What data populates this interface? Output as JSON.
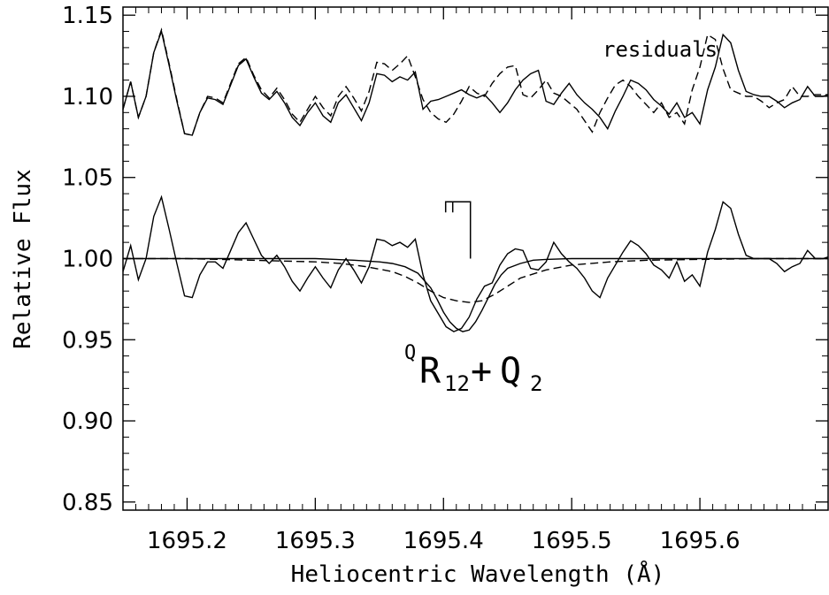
{
  "chart_data": {
    "type": "line",
    "xlabel": "Heliocentric Wavelength (Å)",
    "ylabel": "Relative Flux",
    "xlim": [
      1695.15,
      1695.7
    ],
    "ylim": [
      0.845,
      1.155
    ],
    "x_ticks": [
      1695.2,
      1695.3,
      1695.4,
      1695.5,
      1695.6
    ],
    "x_tick_labels": [
      "1695.2",
      "1695.3",
      "1695.4",
      "1695.5",
      "1695.6"
    ],
    "y_ticks": [
      0.85,
      0.9,
      0.95,
      1.0,
      1.05,
      1.1,
      1.15
    ],
    "y_tick_labels": [
      "0.85",
      "0.90",
      "0.95",
      "1.00",
      "1.05",
      "1.10",
      "1.15"
    ],
    "grid": false,
    "annotations": {
      "residuals_label": "residuals",
      "line_id": {
        "superscript": "Q",
        "base1": "R",
        "subscript1": "12",
        "plus": "+",
        "base2": "Q",
        "subscript2": "2"
      },
      "line_marker_wavelength": 1695.421
    },
    "series": [
      {
        "style": "solid-thin",
        "x": [
          1695.15,
          1695.156,
          1695.162,
          1695.168,
          1695.174,
          1695.18,
          1695.186,
          1695.192,
          1695.198,
          1695.204,
          1695.21,
          1695.216,
          1695.222,
          1695.228,
          1695.234,
          1695.24,
          1695.246,
          1695.252,
          1695.258,
          1695.264,
          1695.27,
          1695.276,
          1695.282,
          1695.288,
          1695.294,
          1695.3,
          1695.306,
          1695.312,
          1695.318,
          1695.324,
          1695.33,
          1695.336,
          1695.342,
          1695.348,
          1695.354,
          1695.36,
          1695.366,
          1695.372,
          1695.378,
          1695.384,
          1695.39,
          1695.396,
          1695.402,
          1695.408,
          1695.414,
          1695.42,
          1695.426,
          1695.432,
          1695.438,
          1695.444,
          1695.45,
          1695.456,
          1695.462,
          1695.468,
          1695.474,
          1695.48,
          1695.486,
          1695.492,
          1695.498,
          1695.504,
          1695.51,
          1695.516,
          1695.522,
          1695.528,
          1695.534,
          1695.54,
          1695.546,
          1695.552,
          1695.558,
          1695.564,
          1695.57,
          1695.576,
          1695.582,
          1695.588,
          1695.594,
          1695.6,
          1695.606,
          1695.612,
          1695.618,
          1695.624,
          1695.63,
          1695.636,
          1695.642,
          1695.648,
          1695.654,
          1695.66,
          1695.666,
          1695.672,
          1695.678,
          1695.684,
          1695.69,
          1695.696,
          1695.7
        ],
        "y": [
          0.992,
          1.008,
          0.987,
          1.0,
          1.026,
          1.038,
          1.018,
          0.997,
          0.977,
          0.976,
          0.99,
          0.998,
          0.998,
          0.994,
          1.005,
          1.016,
          1.022,
          1.012,
          1.002,
          0.997,
          1.002,
          0.995,
          0.986,
          0.98,
          0.988,
          0.995,
          0.988,
          0.982,
          0.993,
          1.0,
          0.993,
          0.985,
          0.995,
          1.012,
          1.011,
          1.008,
          1.01,
          1.007,
          1.012,
          0.99,
          0.974,
          0.966,
          0.958,
          0.955,
          0.957,
          0.964,
          0.975,
          0.983,
          0.985,
          0.996,
          1.003,
          1.006,
          1.005,
          0.994,
          0.993,
          0.998,
          1.01,
          1.003,
          0.998,
          0.994,
          0.988,
          0.98,
          0.976,
          0.988,
          0.996,
          1.004,
          1.011,
          1.008,
          1.003,
          0.996,
          0.993,
          0.988,
          0.998,
          0.986,
          0.99,
          0.983,
          1.004,
          1.018,
          1.035,
          1.031,
          1.015,
          1.002,
          1.0,
          1.0,
          1.0,
          0.997,
          0.992,
          0.995,
          0.997,
          1.005,
          1.0,
          1.0,
          1.001
        ]
      },
      {
        "style": "solid-smooth-model",
        "x": [
          1695.15,
          1695.2,
          1695.25,
          1695.3,
          1695.33,
          1695.35,
          1695.36,
          1695.37,
          1695.38,
          1695.39,
          1695.395,
          1695.4,
          1695.405,
          1695.41,
          1695.415,
          1695.42,
          1695.425,
          1695.43,
          1695.435,
          1695.44,
          1695.445,
          1695.45,
          1695.46,
          1695.47,
          1695.48,
          1695.5,
          1695.55,
          1695.6,
          1695.65,
          1695.7
        ],
        "y": [
          1.0,
          1.0,
          1.0,
          1.0,
          0.999,
          0.998,
          0.997,
          0.995,
          0.991,
          0.982,
          0.975,
          0.967,
          0.961,
          0.957,
          0.955,
          0.956,
          0.961,
          0.968,
          0.976,
          0.984,
          0.99,
          0.994,
          0.997,
          0.999,
          0.9995,
          1.0,
          1.0,
          1.0,
          1.0,
          1.0
        ]
      },
      {
        "style": "dashed-model",
        "x": [
          1695.15,
          1695.2,
          1695.25,
          1695.3,
          1695.32,
          1695.34,
          1695.36,
          1695.37,
          1695.38,
          1695.39,
          1695.4,
          1695.41,
          1695.42,
          1695.43,
          1695.44,
          1695.45,
          1695.46,
          1695.48,
          1695.5,
          1695.53,
          1695.56,
          1695.6,
          1695.65,
          1695.7
        ],
        "y": [
          1.0,
          1.0,
          0.999,
          0.998,
          0.997,
          0.995,
          0.992,
          0.989,
          0.985,
          0.98,
          0.976,
          0.974,
          0.973,
          0.974,
          0.978,
          0.983,
          0.988,
          0.993,
          0.996,
          0.998,
          0.999,
          0.9995,
          1.0,
          1.0
        ]
      },
      {
        "style": "solid-thin",
        "x": [
          1695.15,
          1695.156,
          1695.162,
          1695.168,
          1695.174,
          1695.18,
          1695.186,
          1695.192,
          1695.198,
          1695.204,
          1695.21,
          1695.216,
          1695.222,
          1695.228,
          1695.234,
          1695.24,
          1695.246,
          1695.252,
          1695.258,
          1695.264,
          1695.27,
          1695.276,
          1695.282,
          1695.288,
          1695.294,
          1695.3,
          1695.306,
          1695.312,
          1695.318,
          1695.324,
          1695.33,
          1695.336,
          1695.342,
          1695.348,
          1695.354,
          1695.36,
          1695.366,
          1695.372,
          1695.378,
          1695.384,
          1695.39,
          1695.396,
          1695.402,
          1695.408,
          1695.414,
          1695.42,
          1695.426,
          1695.432,
          1695.438,
          1695.444,
          1695.45,
          1695.456,
          1695.462,
          1695.468,
          1695.474,
          1695.48,
          1695.486,
          1695.492,
          1695.498,
          1695.504,
          1695.51,
          1695.516,
          1695.522,
          1695.528,
          1695.534,
          1695.54,
          1695.546,
          1695.552,
          1695.558,
          1695.564,
          1695.57,
          1695.576,
          1695.582,
          1695.588,
          1695.594,
          1695.6,
          1695.606,
          1695.612,
          1695.618,
          1695.624,
          1695.63,
          1695.636,
          1695.642,
          1695.648,
          1695.654,
          1695.66,
          1695.666,
          1695.672,
          1695.678,
          1695.684,
          1695.69,
          1695.696,
          1695.7
        ],
        "y": [
          1.092,
          1.109,
          1.087,
          1.1,
          1.127,
          1.14,
          1.119,
          1.097,
          1.077,
          1.076,
          1.09,
          1.099,
          1.098,
          1.095,
          1.107,
          1.119,
          1.123,
          1.112,
          1.102,
          1.098,
          1.103,
          1.096,
          1.087,
          1.082,
          1.09,
          1.096,
          1.088,
          1.084,
          1.096,
          1.101,
          1.093,
          1.085,
          1.096,
          1.114,
          1.113,
          1.109,
          1.112,
          1.11,
          1.115,
          1.092,
          1.097,
          1.098,
          1.1,
          1.102,
          1.104,
          1.101,
          1.099,
          1.101,
          1.096,
          1.09,
          1.096,
          1.104,
          1.11,
          1.114,
          1.116,
          1.097,
          1.095,
          1.102,
          1.108,
          1.101,
          1.096,
          1.092,
          1.087,
          1.08,
          1.091,
          1.1,
          1.11,
          1.108,
          1.104,
          1.098,
          1.094,
          1.089,
          1.096,
          1.087,
          1.09,
          1.083,
          1.104,
          1.118,
          1.138,
          1.133,
          1.116,
          1.103,
          1.101,
          1.1,
          1.1,
          1.097,
          1.093,
          1.096,
          1.098,
          1.106,
          1.1,
          1.1,
          1.101
        ]
      },
      {
        "style": "dashed",
        "x": [
          1695.15,
          1695.156,
          1695.162,
          1695.168,
          1695.174,
          1695.18,
          1695.186,
          1695.192,
          1695.198,
          1695.204,
          1695.21,
          1695.216,
          1695.222,
          1695.228,
          1695.234,
          1695.24,
          1695.246,
          1695.252,
          1695.258,
          1695.264,
          1695.27,
          1695.276,
          1695.282,
          1695.288,
          1695.294,
          1695.3,
          1695.306,
          1695.312,
          1695.318,
          1695.324,
          1695.33,
          1695.336,
          1695.342,
          1695.348,
          1695.354,
          1695.36,
          1695.366,
          1695.372,
          1695.378,
          1695.384,
          1695.39,
          1695.396,
          1695.402,
          1695.408,
          1695.414,
          1695.42,
          1695.426,
          1695.432,
          1695.438,
          1695.444,
          1695.45,
          1695.456,
          1695.462,
          1695.468,
          1695.474,
          1695.48,
          1695.486,
          1695.492,
          1695.498,
          1695.504,
          1695.51,
          1695.516,
          1695.522,
          1695.528,
          1695.534,
          1695.54,
          1695.546,
          1695.552,
          1695.558,
          1695.564,
          1695.57,
          1695.576,
          1695.582,
          1695.588,
          1695.594,
          1695.6,
          1695.606,
          1695.612,
          1695.618,
          1695.624,
          1695.63,
          1695.636,
          1695.642,
          1695.648,
          1695.654,
          1695.66,
          1695.666,
          1695.672,
          1695.678,
          1695.684,
          1695.69,
          1695.696,
          1695.7
        ],
        "y": [
          1.092,
          1.109,
          1.087,
          1.1,
          1.127,
          1.141,
          1.12,
          1.098,
          1.077,
          1.076,
          1.09,
          1.1,
          1.099,
          1.096,
          1.108,
          1.12,
          1.124,
          1.113,
          1.104,
          1.099,
          1.105,
          1.098,
          1.089,
          1.084,
          1.092,
          1.1,
          1.093,
          1.088,
          1.1,
          1.106,
          1.099,
          1.091,
          1.103,
          1.121,
          1.12,
          1.116,
          1.12,
          1.125,
          1.112,
          1.098,
          1.09,
          1.086,
          1.084,
          1.089,
          1.097,
          1.106,
          1.102,
          1.1,
          1.108,
          1.114,
          1.118,
          1.119,
          1.101,
          1.099,
          1.104,
          1.11,
          1.102,
          1.1,
          1.096,
          1.092,
          1.085,
          1.078,
          1.09,
          1.099,
          1.107,
          1.11,
          1.106,
          1.1,
          1.095,
          1.09,
          1.096,
          1.087,
          1.09,
          1.083,
          1.104,
          1.118,
          1.138,
          1.135,
          1.117,
          1.104,
          1.102,
          1.1,
          1.1,
          1.097,
          1.093,
          1.096,
          1.098,
          1.106,
          1.1,
          1.1,
          1.101,
          1.101,
          1.101
        ]
      }
    ]
  }
}
